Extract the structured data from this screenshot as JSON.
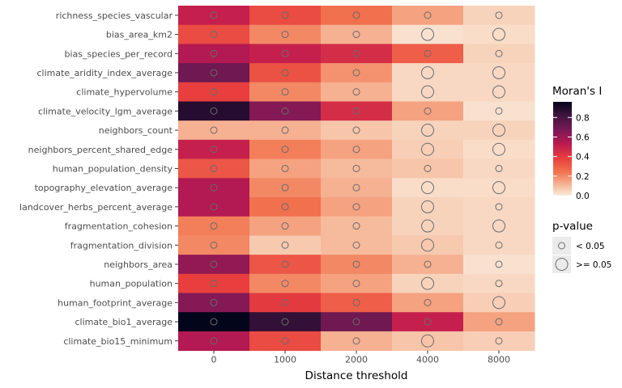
{
  "chart_data": {
    "type": "heatmap",
    "xlabel": "Distance threshold",
    "ylabel": "",
    "x_categories": [
      "0",
      "1000",
      "2000",
      "4000",
      "8000"
    ],
    "y_categories": [
      "richness_species_vascular",
      "bias_area_km2",
      "bias_species_per_record",
      "climate_aridity_index_average",
      "climate_hypervolume",
      "climate_velocity_lgm_average",
      "neighbors_count",
      "neighbors_percent_shared_edge",
      "human_population_density",
      "topography_elevation_average",
      "landcover_herbs_percent_average",
      "fragmentation_cohesion",
      "fragmentation_division",
      "neighbors_area",
      "human_population",
      "human_footprint_average",
      "climate_bio1_average",
      "climate_bio15_minimum"
    ],
    "morans_i": [
      [
        0.5,
        0.35,
        0.25,
        0.15,
        0.05
      ],
      [
        0.35,
        0.2,
        0.12,
        0.02,
        0.03
      ],
      [
        0.55,
        0.5,
        0.45,
        0.3,
        0.05
      ],
      [
        0.7,
        0.33,
        0.18,
        0.04,
        0.04
      ],
      [
        0.38,
        0.2,
        0.12,
        0.04,
        0.04
      ],
      [
        0.88,
        0.65,
        0.45,
        0.15,
        0.02
      ],
      [
        0.12,
        0.12,
        0.08,
        0.05,
        0.05
      ],
      [
        0.5,
        0.22,
        0.15,
        0.06,
        0.03
      ],
      [
        0.32,
        0.15,
        0.1,
        0.08,
        0.04
      ],
      [
        0.55,
        0.2,
        0.12,
        0.03,
        0.03
      ],
      [
        0.55,
        0.25,
        0.15,
        0.05,
        0.04
      ],
      [
        0.22,
        0.15,
        0.1,
        0.05,
        0.04
      ],
      [
        0.2,
        0.07,
        0.1,
        0.07,
        0.04
      ],
      [
        0.62,
        0.32,
        0.2,
        0.12,
        0.02
      ],
      [
        0.38,
        0.2,
        0.15,
        0.05,
        0.04
      ],
      [
        0.65,
        0.4,
        0.3,
        0.15,
        0.06
      ],
      [
        0.96,
        0.85,
        0.7,
        0.5,
        0.15
      ],
      [
        0.55,
        0.35,
        0.12,
        0.08,
        0.06
      ]
    ],
    "p_value_ge_005": [
      [
        false,
        false,
        false,
        false,
        false
      ],
      [
        false,
        false,
        false,
        true,
        true
      ],
      [
        false,
        false,
        false,
        false,
        false
      ],
      [
        false,
        false,
        false,
        true,
        true
      ],
      [
        false,
        false,
        false,
        true,
        true
      ],
      [
        false,
        false,
        false,
        false,
        false
      ],
      [
        false,
        false,
        false,
        true,
        true
      ],
      [
        false,
        false,
        false,
        true,
        true
      ],
      [
        false,
        false,
        false,
        false,
        false
      ],
      [
        false,
        false,
        false,
        true,
        true
      ],
      [
        false,
        false,
        false,
        true,
        false
      ],
      [
        false,
        false,
        false,
        true,
        true
      ],
      [
        false,
        false,
        false,
        true,
        false
      ],
      [
        false,
        false,
        false,
        false,
        false
      ],
      [
        false,
        false,
        false,
        true,
        false
      ],
      [
        false,
        false,
        false,
        false,
        true
      ],
      [
        false,
        false,
        false,
        false,
        false
      ],
      [
        false,
        false,
        false,
        true,
        false
      ]
    ],
    "colorbar": {
      "title": "Moran's I",
      "ticks": [
        "0.0",
        "0.2",
        "0.4",
        "0.6",
        "0.8"
      ],
      "tick_values": [
        0.0,
        0.2,
        0.4,
        0.6,
        0.8
      ],
      "range": [
        0.0,
        0.96
      ]
    },
    "size_legend": {
      "title": "p-value",
      "items": [
        "< 0.05",
        ">= 0.05"
      ]
    },
    "grid": false,
    "legend_position": "right"
  }
}
